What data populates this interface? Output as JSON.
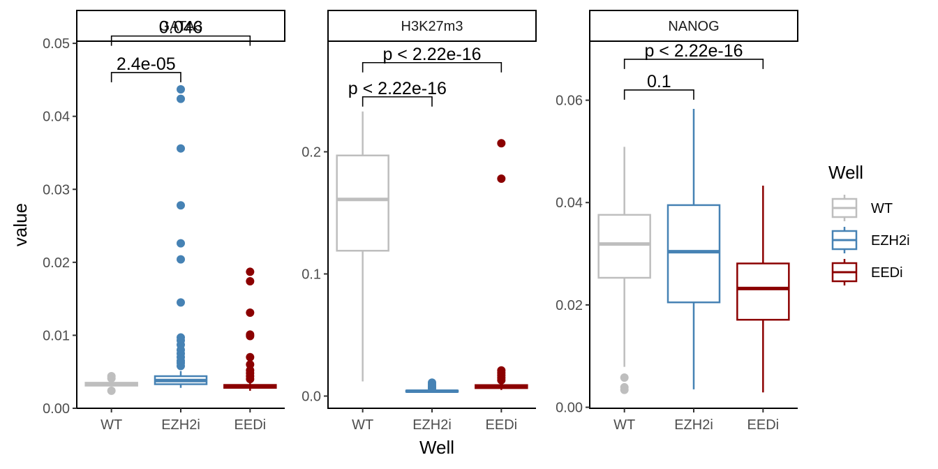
{
  "chart_data": {
    "type": "box",
    "xlabel": "Well",
    "ylabel": "value",
    "categories": [
      "WT",
      "EZH2i",
      "EEDi"
    ],
    "colors": {
      "WT": "#bebebe",
      "EZH2i": "#4682b4",
      "EEDi": "#8b0000"
    },
    "legend": {
      "title": "Well",
      "position": "right",
      "entries": [
        "WT",
        "EZH2i",
        "EEDi"
      ]
    },
    "grid": false,
    "panels": [
      {
        "name": "GATA3",
        "ylim": [
          0,
          0.0502
        ],
        "yticks": [
          0.0,
          0.01,
          0.02,
          0.03,
          0.04,
          0.05
        ],
        "tick_labels": [
          "0.00",
          "0.01",
          "0.02",
          "0.03",
          "0.04",
          "0.05"
        ],
        "boxes": [
          {
            "group": "WT",
            "min": 0.003,
            "q1": 0.0031,
            "median": 0.0033,
            "q3": 0.0035,
            "max": 0.0037,
            "outliers": [
              0.0044,
              0.0041,
              0.0024
            ]
          },
          {
            "group": "EZH2i",
            "min": 0.0028,
            "q1": 0.0033,
            "median": 0.0038,
            "q3": 0.0044,
            "max": 0.0051,
            "outliers": [
              0.0437,
              0.0424,
              0.0356,
              0.0278,
              0.0226,
              0.0204,
              0.0145,
              0.0097,
              0.0093,
              0.0087,
              0.008,
              0.0075,
              0.007,
              0.0065,
              0.0062,
              0.0058
            ]
          },
          {
            "group": "EEDi",
            "min": 0.0024,
            "q1": 0.0028,
            "median": 0.003,
            "q3": 0.0032,
            "max": 0.0037,
            "outliers": [
              0.0187,
              0.0174,
              0.0131,
              0.0101,
              0.0099,
              0.007,
              0.006,
              0.0052,
              0.0048,
              0.0044,
              0.004
            ]
          }
        ],
        "comparisons": [
          {
            "groups": [
              "WT",
              "EZH2i"
            ],
            "label": "2.4e-05",
            "y": 0.046
          },
          {
            "groups": [
              "WT",
              "EEDi"
            ],
            "label": "0.046",
            "y": 0.051
          }
        ]
      },
      {
        "name": "H3K27m3",
        "ylim": [
          -0.01,
          0.29
        ],
        "yticks": [
          0.0,
          0.1,
          0.2
        ],
        "tick_labels": [
          "0.0",
          "0.1",
          "0.2"
        ],
        "boxes": [
          {
            "group": "WT",
            "min": 0.012,
            "q1": 0.119,
            "median": 0.161,
            "q3": 0.197,
            "max": 0.233,
            "outliers": []
          },
          {
            "group": "EZH2i",
            "min": 0.003,
            "q1": 0.0035,
            "median": 0.004,
            "q3": 0.0045,
            "max": 0.005,
            "outliers": [
              0.011,
              0.0095,
              0.008,
              0.007,
              0.006
            ]
          },
          {
            "group": "EEDi",
            "min": 0.005,
            "q1": 0.0065,
            "median": 0.008,
            "q3": 0.009,
            "max": 0.011,
            "outliers": [
              0.207,
              0.178,
              0.021,
              0.019,
              0.017,
              0.015,
              0.013
            ]
          }
        ],
        "comparisons": [
          {
            "groups": [
              "WT",
              "EZH2i"
            ],
            "label": "p < 2.22e-16",
            "y": 0.245
          },
          {
            "groups": [
              "WT",
              "EEDi"
            ],
            "label": "p < 2.22e-16",
            "y": 0.273
          }
        ]
      },
      {
        "name": "NANOG",
        "ylim": [
          -0.0002,
          0.0714
        ],
        "yticks": [
          0.0,
          0.02,
          0.04,
          0.06
        ],
        "tick_labels": [
          "0.00",
          "0.02",
          "0.04",
          "0.06"
        ],
        "boxes": [
          {
            "group": "WT",
            "min": 0.0079,
            "q1": 0.0253,
            "median": 0.0319,
            "q3": 0.0376,
            "max": 0.0509,
            "outliers": [
              0.0058,
              0.0039,
              0.0034
            ]
          },
          {
            "group": "EZH2i",
            "min": 0.0035,
            "q1": 0.0205,
            "median": 0.0304,
            "q3": 0.0395,
            "max": 0.0583,
            "outliers": []
          },
          {
            "group": "EEDi",
            "min": 0.0029,
            "q1": 0.0171,
            "median": 0.0232,
            "q3": 0.0281,
            "max": 0.0433,
            "outliers": []
          }
        ],
        "comparisons": [
          {
            "groups": [
              "WT",
              "EZH2i"
            ],
            "label": "0.1",
            "y": 0.062
          },
          {
            "groups": [
              "WT",
              "EEDi"
            ],
            "label": "p < 2.22e-16",
            "y": 0.068
          }
        ]
      }
    ]
  }
}
